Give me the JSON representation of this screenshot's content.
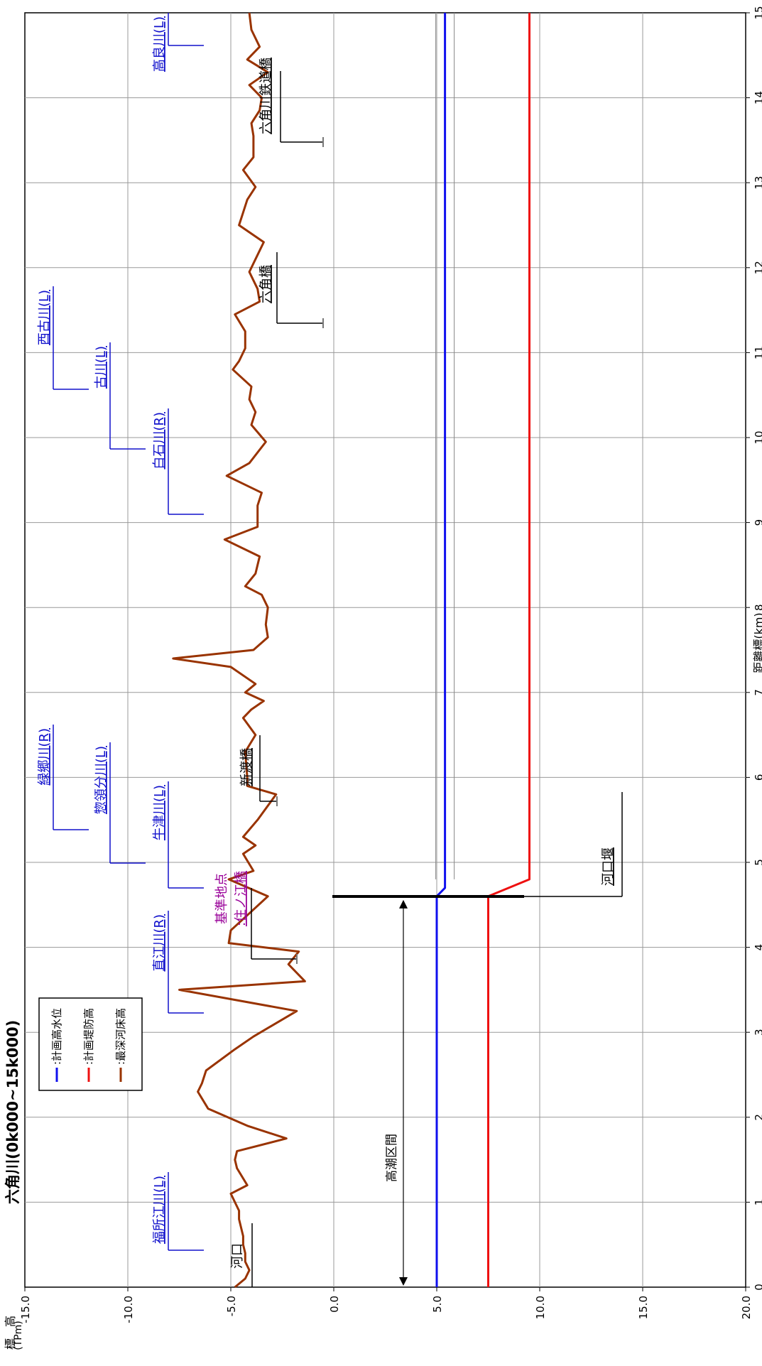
{
  "chart_data": {
    "type": "line",
    "title": "六角川(0k000~15k000)",
    "xlabel": "距離標(km)",
    "ylabel": "標　高",
    "yunit": "(TPm)",
    "xlim": [
      0,
      15
    ],
    "ylim": [
      -15,
      20
    ],
    "xticks": [
      "0",
      "1",
      "2",
      "3",
      "4",
      "5",
      "6",
      "7",
      "8",
      "9",
      "10",
      "11",
      "12",
      "13",
      "14",
      "15"
    ],
    "yticks": [
      "-15.0",
      "-10.0",
      "-5.0",
      "0.0",
      "5.0",
      "10.0",
      "15.0",
      "20.0"
    ],
    "grid": true,
    "legend_position": "top-left",
    "series": [
      {
        "name": ":計画高水位",
        "color": "#1010ee",
        "x": [
          0,
          4.6,
          4.7,
          15
        ],
        "y": [
          5.0,
          5.0,
          5.4,
          5.4
        ]
      },
      {
        "name": ":計画堤防高",
        "color": "#ee1010",
        "x": [
          0,
          4.6,
          4.8,
          15
        ],
        "y": [
          7.5,
          7.5,
          9.5,
          9.5
        ]
      },
      {
        "name": ":最深河床高",
        "color": "#993300",
        "x": [
          0,
          0.1,
          0.2,
          0.3,
          0.4,
          0.5,
          0.6,
          0.8,
          0.9,
          1.1,
          1.2,
          1.4,
          1.5,
          1.6,
          1.75,
          1.9,
          2.1,
          2.3,
          2.4,
          2.55,
          2.8,
          2.95,
          3.25,
          3.5,
          3.6,
          3.8,
          3.95,
          4.05,
          4.2,
          4.4,
          4.6,
          4.8,
          4.9,
          5.1,
          5.2,
          5.3,
          5.5,
          5.8,
          5.9,
          6.0,
          6.3,
          6.5,
          6.7,
          6.8,
          6.9,
          7.0,
          7.1,
          7.3,
          7.4,
          7.5,
          7.65,
          7.8,
          8.0,
          8.15,
          8.25,
          8.4,
          8.6,
          8.8,
          8.95,
          9.2,
          9.35,
          9.55,
          9.7,
          9.95,
          10.15,
          10.3,
          10.45,
          10.6,
          10.8,
          10.9,
          11.05,
          11.25,
          11.45,
          11.6,
          11.75,
          11.95,
          12.1,
          12.3,
          12.5,
          12.65,
          12.8,
          12.95,
          13.15,
          13.3,
          13.55,
          13.7,
          13.85,
          14.0,
          14.15,
          14.3,
          14.45,
          14.6,
          14.8,
          15
        ],
        "y": [
          -4.8,
          -4.3,
          -4.1,
          -4.3,
          -4.3,
          -4.4,
          -4.4,
          -4.6,
          -4.6,
          -5.0,
          -4.2,
          -4.7,
          -4.8,
          -4.7,
          -2.3,
          -4.2,
          -6.1,
          -6.6,
          -6.4,
          -6.2,
          -4.8,
          -3.9,
          -1.8,
          -7.5,
          -1.4,
          -2.2,
          -1.7,
          -5.1,
          -5.0,
          -4.1,
          -3.2,
          -5.1,
          -3.9,
          -4.4,
          -3.8,
          -4.4,
          -3.7,
          -2.8,
          -4.2,
          -4.2,
          -4.3,
          -3.8,
          -4.4,
          -4.0,
          -3.4,
          -4.3,
          -3.8,
          -5.0,
          -7.8,
          -3.9,
          -3.2,
          -3.3,
          -3.2,
          -3.5,
          -4.3,
          -3.8,
          -3.6,
          -5.3,
          -3.7,
          -3.7,
          -3.5,
          -5.2,
          -4.1,
          -3.3,
          -4.0,
          -3.8,
          -4.1,
          -4.0,
          -4.9,
          -4.6,
          -4.3,
          -4.3,
          -4.8,
          -3.6,
          -3.7,
          -4.1,
          -3.8,
          -3.4,
          -4.6,
          -4.4,
          -4.2,
          -3.8,
          -4.4,
          -3.9,
          -3.9,
          -4.0,
          -3.6,
          -3.5,
          -4.1,
          -3.2,
          -4.2,
          -3.6,
          -4.0,
          -4.1
        ]
      }
    ],
    "annotations": [
      {
        "text": "河口",
        "x": 0.5,
        "color": "#000000",
        "kind": "point"
      },
      {
        "text": "福所江川(L)",
        "x": 0.5,
        "color": "#1010cc",
        "kind": "tributary"
      },
      {
        "text": "直江川(R)",
        "x": 3.9,
        "color": "#1010cc",
        "kind": "tributary"
      },
      {
        "text": "基準地点",
        "x": 4.25,
        "color": "#990099",
        "kind": "station"
      },
      {
        "text": ":住ノ江橋",
        "x": 4.25,
        "color": "#990099",
        "kind": "station"
      },
      {
        "text": "牛津川(L)",
        "x": 5.2,
        "color": "#1010cc",
        "kind": "tributary"
      },
      {
        "text": "惣領分川(L)",
        "x": 5.6,
        "color": "#1010cc",
        "kind": "tributary"
      },
      {
        "text": "緑郷川(R)",
        "x": 6.3,
        "color": "#1010cc",
        "kind": "tributary"
      },
      {
        "text": "新渡橋",
        "x": 6.3,
        "color": "#000000",
        "kind": "bridge"
      },
      {
        "text": "河口堰",
        "x": 4.7,
        "color": "#000000",
        "kind": "weir"
      },
      {
        "text": "高潮区間",
        "x": 2.3,
        "color": "#000000",
        "kind": "range",
        "from": 0,
        "to": 4.6
      },
      {
        "text": "白石川(R)",
        "x": 9.8,
        "color": "#1010cc",
        "kind": "tributary"
      },
      {
        "text": "古川(L)",
        "x": 10.5,
        "color": "#1010cc",
        "kind": "tributary"
      },
      {
        "text": "西古川(L)",
        "x": 11.2,
        "color": "#1010cc",
        "kind": "tributary"
      },
      {
        "text": "六角橋",
        "x": 11.6,
        "color": "#000000",
        "kind": "bridge"
      },
      {
        "text": "六角川鉄道橋",
        "x": 13.7,
        "color": "#000000",
        "kind": "bridge"
      },
      {
        "text": "高良川(L)",
        "x": 14.6,
        "color": "#1010cc",
        "kind": "tributary"
      }
    ]
  }
}
